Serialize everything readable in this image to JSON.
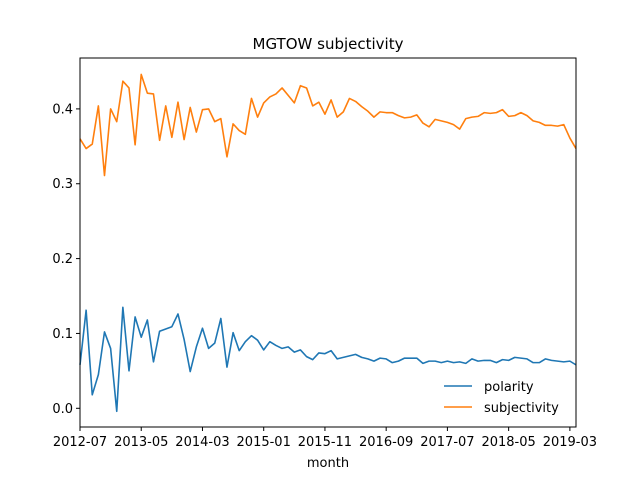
{
  "chart_data": {
    "type": "line",
    "title": "MGTOW subjectivity",
    "xlabel": "month",
    "ylabel": "",
    "x_tick_labels": [
      "2012-07",
      "2013-05",
      "2014-03",
      "2015-01",
      "2015-11",
      "2016-09",
      "2017-07",
      "2018-05",
      "2019-03"
    ],
    "y_tick_labels": [
      "0.0",
      "0.1",
      "0.2",
      "0.3",
      "0.4"
    ],
    "y_ticks": [
      0.0,
      0.1,
      0.2,
      0.3,
      0.4
    ],
    "ylim": [
      -0.025,
      0.468
    ],
    "x_start": "2012-07",
    "x_end": "2019-04",
    "grid": false,
    "legend_position": "lower right",
    "series": [
      {
        "name": "polarity",
        "color": "#1f77b4",
        "values": [
          0.058,
          0.131,
          0.018,
          0.045,
          0.102,
          0.08,
          -0.004,
          0.135,
          0.05,
          0.122,
          0.095,
          0.118,
          0.062,
          0.103,
          0.106,
          0.109,
          0.126,
          0.092,
          0.049,
          0.082,
          0.107,
          0.08,
          0.087,
          0.12,
          0.055,
          0.101,
          0.077,
          0.089,
          0.097,
          0.091,
          0.078,
          0.089,
          0.084,
          0.08,
          0.082,
          0.075,
          0.078,
          0.069,
          0.065,
          0.074,
          0.073,
          0.077,
          0.066,
          0.068,
          0.07,
          0.072,
          0.068,
          0.066,
          0.063,
          0.067,
          0.066,
          0.061,
          0.063,
          0.067,
          0.067,
          0.067,
          0.06,
          0.063,
          0.063,
          0.061,
          0.063,
          0.061,
          0.062,
          0.06,
          0.066,
          0.063,
          0.064,
          0.064,
          0.061,
          0.065,
          0.064,
          0.068,
          0.067,
          0.066,
          0.061,
          0.061,
          0.066,
          0.064,
          0.063,
          0.062,
          0.063,
          0.058
        ]
      },
      {
        "name": "subjectivity",
        "color": "#ff7f0e",
        "values": [
          0.36,
          0.347,
          0.353,
          0.404,
          0.311,
          0.4,
          0.383,
          0.437,
          0.428,
          0.352,
          0.446,
          0.421,
          0.42,
          0.358,
          0.404,
          0.362,
          0.409,
          0.359,
          0.402,
          0.369,
          0.399,
          0.4,
          0.383,
          0.387,
          0.336,
          0.38,
          0.371,
          0.366,
          0.414,
          0.389,
          0.408,
          0.416,
          0.42,
          0.428,
          0.418,
          0.408,
          0.431,
          0.428,
          0.404,
          0.409,
          0.393,
          0.412,
          0.389,
          0.396,
          0.414,
          0.41,
          0.403,
          0.397,
          0.389,
          0.396,
          0.395,
          0.395,
          0.391,
          0.388,
          0.389,
          0.392,
          0.381,
          0.376,
          0.386,
          0.384,
          0.382,
          0.379,
          0.373,
          0.387,
          0.389,
          0.39,
          0.395,
          0.394,
          0.395,
          0.399,
          0.39,
          0.391,
          0.395,
          0.391,
          0.384,
          0.382,
          0.378,
          0.378,
          0.377,
          0.379,
          0.361,
          0.347
        ]
      }
    ]
  }
}
